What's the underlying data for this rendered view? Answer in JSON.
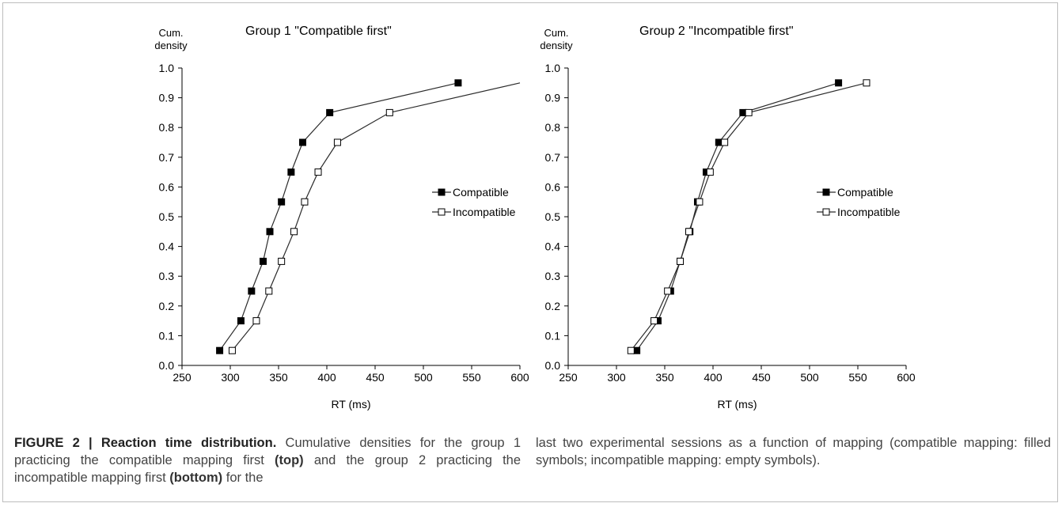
{
  "chart_data": [
    {
      "type": "line",
      "title": "Group 1 \"Compatible first\"",
      "ylabel_line1": "Cum.",
      "ylabel_line2": "density",
      "xlabel": "RT (ms)",
      "xlim": [
        250,
        600
      ],
      "ylim": [
        0.0,
        1.0
      ],
      "xticks": [
        "250",
        "300",
        "350",
        "400",
        "450",
        "500",
        "550",
        "600"
      ],
      "yticks": [
        "0.0",
        "0.1",
        "0.2",
        "0.3",
        "0.4",
        "0.5",
        "0.6",
        "0.7",
        "0.8",
        "0.9",
        "1.0"
      ],
      "legend_position": "right",
      "series": [
        {
          "name": "Compatible",
          "marker": "filled-square",
          "x": [
            289,
            311,
            322,
            334,
            341,
            353,
            363,
            375,
            403,
            536
          ],
          "y": [
            0.05,
            0.15,
            0.25,
            0.35,
            0.45,
            0.55,
            0.65,
            0.75,
            0.85,
            0.95
          ]
        },
        {
          "name": "Incompatible",
          "marker": "empty-square",
          "x": [
            302,
            327,
            340,
            353,
            366,
            377,
            391,
            411,
            465,
            600
          ],
          "y": [
            0.05,
            0.15,
            0.25,
            0.35,
            0.45,
            0.55,
            0.65,
            0.75,
            0.85,
            0.95
          ]
        }
      ]
    },
    {
      "type": "line",
      "title": "Group 2 \"Incompatible first\"",
      "ylabel_line1": "Cum.",
      "ylabel_line2": "density",
      "xlabel": "RT (ms)",
      "xlim": [
        250,
        600
      ],
      "ylim": [
        0.0,
        1.0
      ],
      "xticks": [
        "250",
        "300",
        "350",
        "400",
        "450",
        "500",
        "550",
        "600"
      ],
      "yticks": [
        "0.0",
        "0.1",
        "0.2",
        "0.3",
        "0.4",
        "0.5",
        "0.6",
        "0.7",
        "0.8",
        "0.9",
        "1.0"
      ],
      "legend_position": "right",
      "series": [
        {
          "name": "Compatible",
          "marker": "filled-square",
          "x": [
            321,
            343,
            356,
            366,
            376,
            384,
            393,
            406,
            431,
            530
          ],
          "y": [
            0.05,
            0.15,
            0.25,
            0.35,
            0.45,
            0.55,
            0.65,
            0.75,
            0.85,
            0.95
          ]
        },
        {
          "name": "Incompatible",
          "marker": "empty-square",
          "x": [
            315,
            339,
            353,
            366,
            375,
            386,
            397,
            412,
            437,
            559
          ],
          "y": [
            0.05,
            0.15,
            0.25,
            0.35,
            0.45,
            0.55,
            0.65,
            0.75,
            0.85,
            0.95
          ]
        }
      ]
    }
  ],
  "caption": {
    "figure_label": "FIGURE 2 | Reaction time distribution.",
    "left_part1": " Cumulative densities for the group 1 practicing the compatible mapping first ",
    "left_top": "(top)",
    "left_part2": " and the group 2 practicing the incompatible mapping first ",
    "left_bottom": "(bottom)",
    "left_part3": " for the",
    "right_text": "last two experimental sessions as a function of mapping (compatible mapping: filled symbols; incompatible mapping: empty symbols)."
  }
}
